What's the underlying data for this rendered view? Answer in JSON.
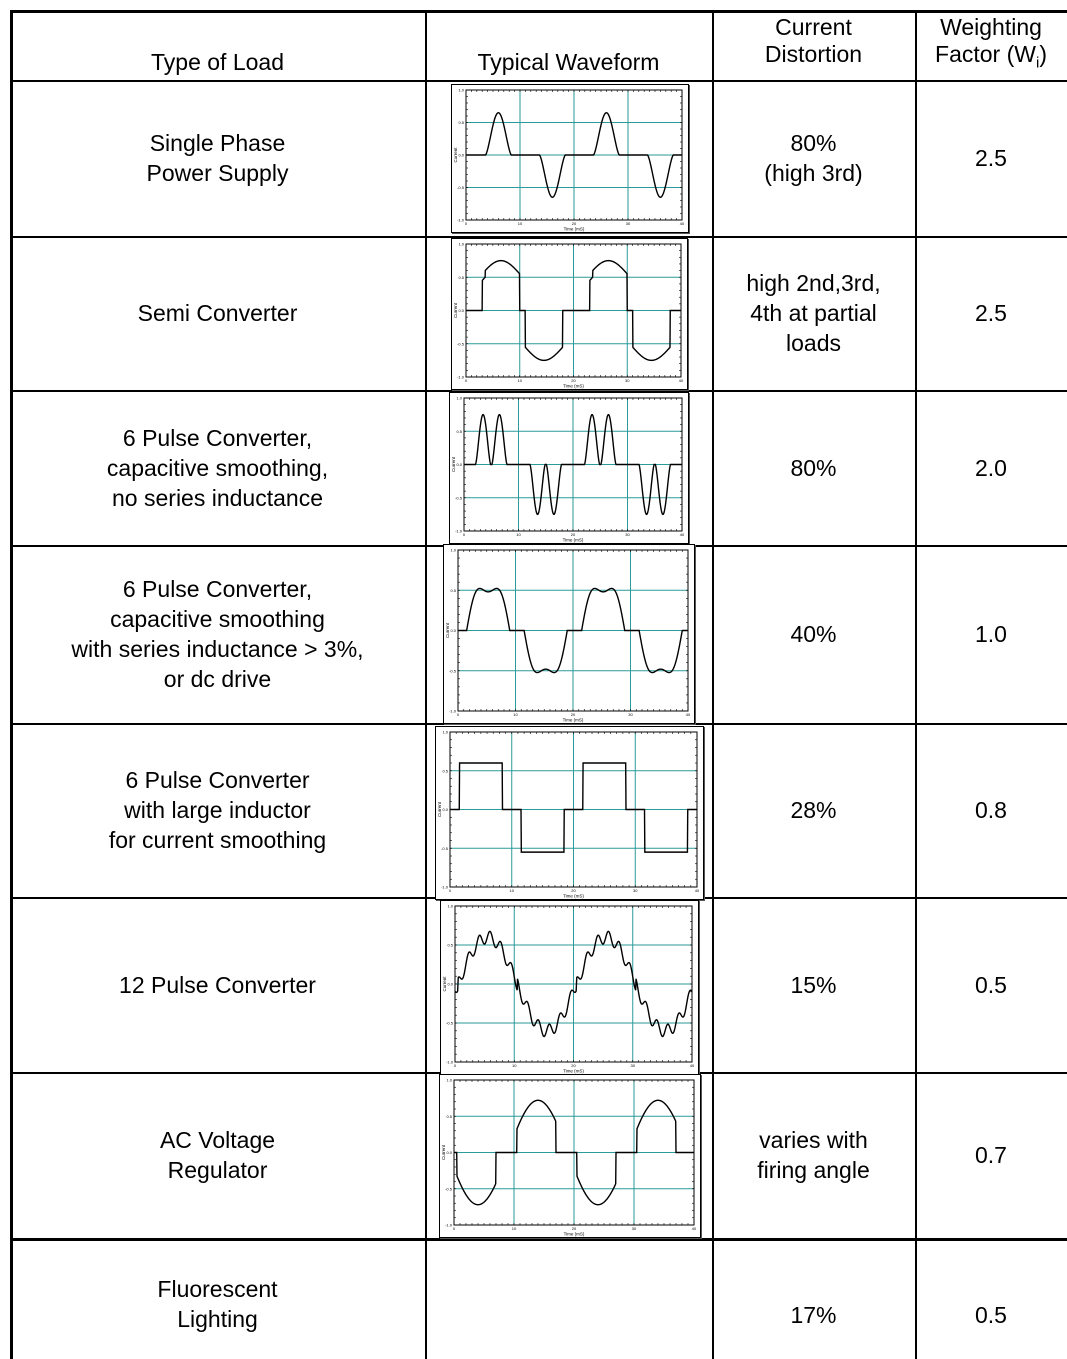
{
  "header": {
    "type": "Type of Load",
    "waveform": "Typical Waveform",
    "distortion": "Current\nDistortion",
    "factor": "Weighting\nFactor (W",
    "factor_sub": "i",
    "factor_end": ")"
  },
  "rows": [
    {
      "type": "Single Phase\nPower Supply",
      "distortion": "80%\n(high 3rd)",
      "factor": "2.5"
    },
    {
      "type": "Semi Converter",
      "distortion": "high 2nd,3rd,\n4th at partial\nloads",
      "factor": "2.5"
    },
    {
      "type": "6 Pulse Converter,\ncapacitive smoothing,\nno series inductance",
      "distortion": "80%",
      "factor": "2.0"
    },
    {
      "type": "6 Pulse Converter,\ncapacitive smoothing\nwith series inductance > 3%,\nor dc drive",
      "distortion": "40%",
      "factor": "1.0"
    },
    {
      "type": "6 Pulse Converter\nwith large inductor\nfor current smoothing",
      "distortion": "28%",
      "factor": "0.8"
    },
    {
      "type": "12 Pulse Converter",
      "distortion": "15%",
      "factor": "0.5"
    },
    {
      "type": "AC Voltage\nRegulator",
      "distortion": "varies with\nfiring angle",
      "factor": "0.7"
    },
    {
      "type": "Fluorescent\nLighting",
      "distortion": "17%",
      "factor": "0.5"
    }
  ],
  "plot_axes": {
    "ylabel": "Current",
    "xlabel": "Time (mS)",
    "yticks": [
      "1.0",
      "0.5",
      "0.0",
      "-0.5",
      "-1.0"
    ],
    "xticks": [
      "0",
      "10",
      "20",
      "30",
      "40"
    ]
  },
  "waveforms": [
    "single-phase",
    "semi-converter",
    "6-pulse-cap",
    "6-pulse-cap-ind",
    "6-pulse-large-ind",
    "12-pulse",
    "ac-regulator"
  ]
}
